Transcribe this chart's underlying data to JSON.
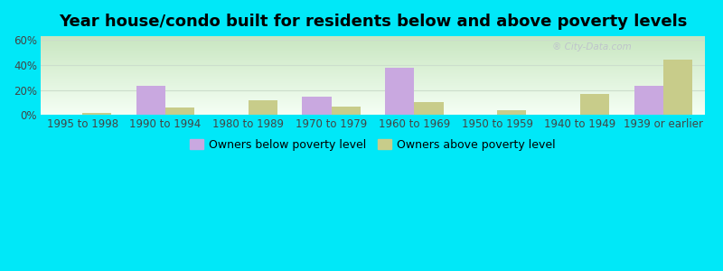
{
  "categories": [
    "1995 to 1998",
    "1990 to 1994",
    "1980 to 1989",
    "1970 to 1979",
    "1960 to 1969",
    "1950 to 1959",
    "1940 to 1949",
    "1939 or earlier"
  ],
  "below_poverty": [
    0,
    23,
    0,
    15,
    38,
    0,
    0,
    23
  ],
  "above_poverty": [
    2,
    6,
    12,
    7,
    10,
    4,
    17,
    44
  ],
  "below_color": "#c9a8e0",
  "above_color": "#c8cc8a",
  "title": "Year house/condo built for residents below and above poverty levels",
  "ylabel_ticks": [
    "0%",
    "20%",
    "40%",
    "60%"
  ],
  "ytick_vals": [
    0,
    20,
    40,
    60
  ],
  "ylim": [
    0,
    63
  ],
  "legend_below": "Owners below poverty level",
  "legend_above": "Owners above poverty level",
  "grad_top": "#c8e6c0",
  "grad_bottom": "#f5fff5",
  "outer_bg": "#00e8f8",
  "bar_width": 0.35,
  "title_fontsize": 13,
  "tick_fontsize": 8.5,
  "legend_fontsize": 9,
  "tick_color": "#444444",
  "grid_color": "#ccddcc"
}
